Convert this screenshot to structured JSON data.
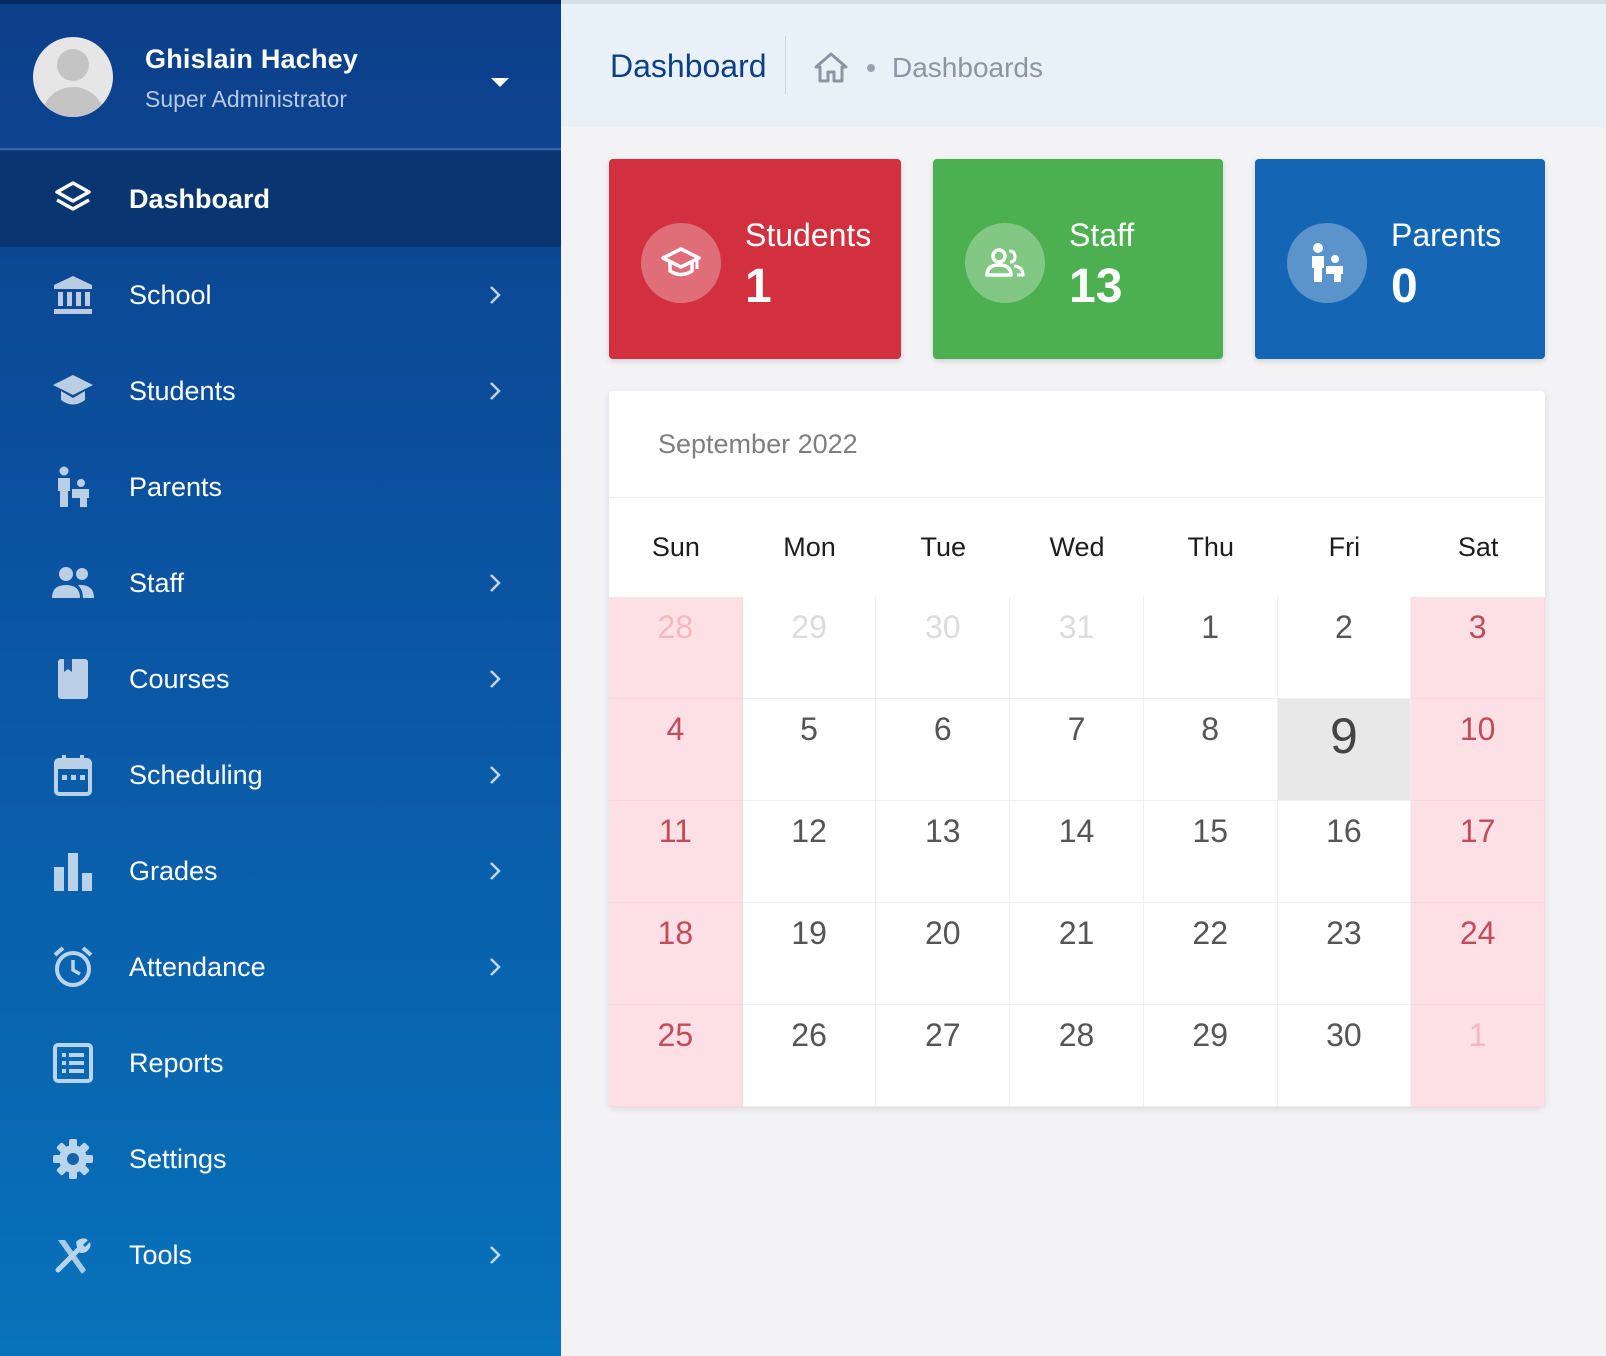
{
  "user": {
    "name": "Ghislain Hachey",
    "role": "Super Administrator"
  },
  "nav": [
    {
      "label": "Dashboard",
      "icon": "layers-icon",
      "active": true,
      "chevron": false
    },
    {
      "label": "School",
      "icon": "institution-icon",
      "chevron": true
    },
    {
      "label": "Students",
      "icon": "graduation-cap-icon",
      "chevron": true
    },
    {
      "label": "Parents",
      "icon": "parent-child-icon",
      "chevron": false
    },
    {
      "label": "Staff",
      "icon": "people-icon",
      "chevron": true
    },
    {
      "label": "Courses",
      "icon": "book-icon",
      "chevron": true
    },
    {
      "label": "Scheduling",
      "icon": "calendar-icon",
      "chevron": true
    },
    {
      "label": "Grades",
      "icon": "bar-chart-icon",
      "chevron": true
    },
    {
      "label": "Attendance",
      "icon": "alarm-clock-icon",
      "chevron": true
    },
    {
      "label": "Reports",
      "icon": "list-icon",
      "chevron": false
    },
    {
      "label": "Settings",
      "icon": "gear-icon",
      "chevron": false
    },
    {
      "label": "Tools",
      "icon": "tools-icon",
      "chevron": true
    }
  ],
  "header": {
    "title": "Dashboard",
    "breadcrumb": "Dashboards"
  },
  "stats": {
    "students": {
      "label": "Students",
      "value": "1",
      "color": "#d2303f"
    },
    "staff": {
      "label": "Staff",
      "value": "13",
      "color": "#4caf50"
    },
    "parents": {
      "label": "Parents",
      "value": "0",
      "color": "#1565b5"
    }
  },
  "calendar": {
    "month": "September 2022",
    "weekdays": [
      "Sun",
      "Mon",
      "Tue",
      "Wed",
      "Thu",
      "Fri",
      "Sat"
    ],
    "today": "9",
    "weeks": [
      [
        "28",
        "29",
        "30",
        "31",
        "1",
        "2",
        "3"
      ],
      [
        "4",
        "5",
        "6",
        "7",
        "8",
        "9",
        "10"
      ],
      [
        "11",
        "12",
        "13",
        "14",
        "15",
        "16",
        "17"
      ],
      [
        "18",
        "19",
        "20",
        "21",
        "22",
        "23",
        "24"
      ],
      [
        "25",
        "26",
        "27",
        "28",
        "29",
        "30",
        "1"
      ]
    ],
    "outside_month": [
      [
        0,
        0
      ],
      [
        0,
        1
      ],
      [
        0,
        2
      ],
      [
        0,
        3
      ],
      [
        4,
        6
      ]
    ]
  }
}
